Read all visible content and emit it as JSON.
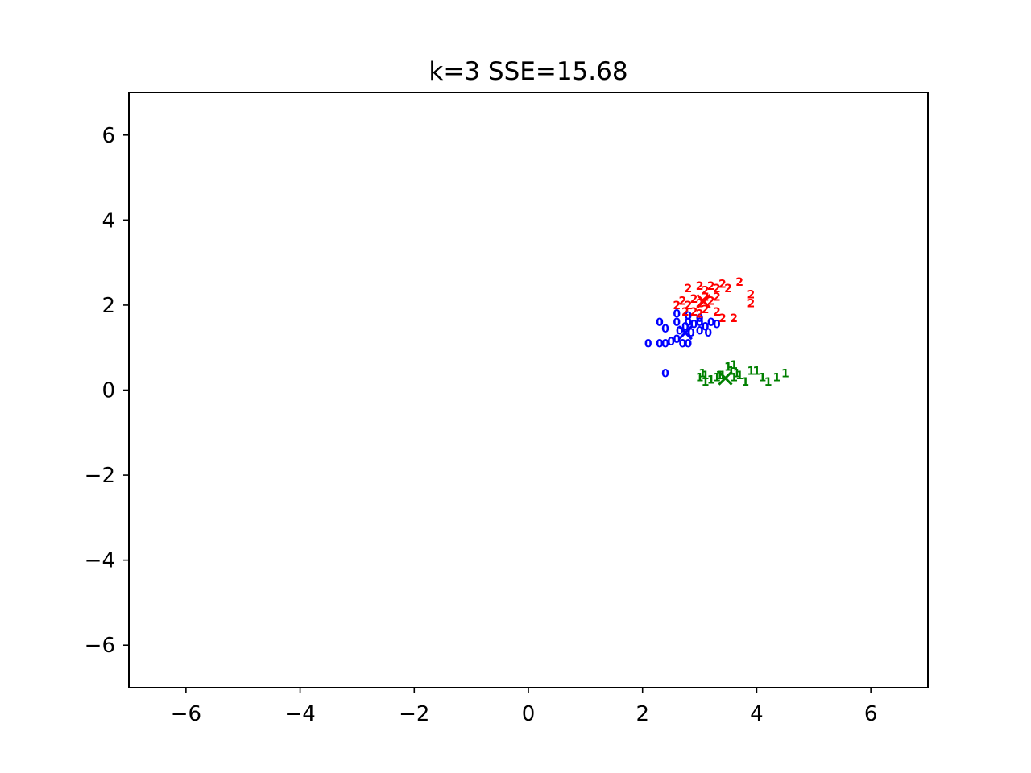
{
  "chart_data": {
    "type": "scatter",
    "title": "k=3  SSE=15.68",
    "xlabel": "",
    "ylabel": "",
    "xlim": [
      -7,
      7
    ],
    "ylim": [
      -7,
      7
    ],
    "xticks": [
      -6,
      -4,
      -2,
      0,
      2,
      4,
      6
    ],
    "yticks": [
      -6,
      -4,
      -2,
      0,
      2,
      4,
      6
    ],
    "xtick_labels": [
      "−6",
      "−4",
      "−2",
      "0",
      "2",
      "4",
      "6"
    ],
    "ytick_labels": [
      "−6",
      "−4",
      "−2",
      "0",
      "2",
      "4",
      "6"
    ],
    "grid": false,
    "legend": "none",
    "marker": "cluster-label-text",
    "series": [
      {
        "label": "0",
        "color": "#0000ff",
        "points": [
          [
            2.1,
            1.1
          ],
          [
            2.3,
            1.1
          ],
          [
            2.4,
            1.1
          ],
          [
            2.5,
            1.15
          ],
          [
            2.6,
            1.2
          ],
          [
            2.7,
            1.1
          ],
          [
            2.8,
            1.1
          ],
          [
            2.3,
            1.6
          ],
          [
            2.4,
            1.45
          ],
          [
            2.6,
            1.8
          ],
          [
            2.6,
            1.6
          ],
          [
            2.65,
            1.4
          ],
          [
            2.75,
            1.5
          ],
          [
            2.8,
            1.6
          ],
          [
            2.85,
            1.35
          ],
          [
            2.9,
            1.55
          ],
          [
            3.0,
            1.4
          ],
          [
            3.0,
            1.6
          ],
          [
            3.1,
            1.5
          ],
          [
            3.15,
            1.35
          ],
          [
            3.2,
            1.6
          ],
          [
            3.3,
            1.55
          ],
          [
            3.0,
            1.7
          ],
          [
            2.8,
            1.75
          ],
          [
            2.4,
            0.4
          ]
        ]
      },
      {
        "label": "1",
        "color": "#008000",
        "points": [
          [
            3.0,
            0.3
          ],
          [
            3.1,
            0.35
          ],
          [
            3.2,
            0.25
          ],
          [
            3.3,
            0.3
          ],
          [
            3.4,
            0.35
          ],
          [
            3.5,
            0.55
          ],
          [
            3.6,
            0.6
          ],
          [
            3.55,
            0.45
          ],
          [
            3.6,
            0.3
          ],
          [
            3.7,
            0.35
          ],
          [
            3.8,
            0.2
          ],
          [
            3.9,
            0.45
          ],
          [
            4.0,
            0.45
          ],
          [
            4.1,
            0.3
          ],
          [
            4.2,
            0.2
          ],
          [
            4.35,
            0.3
          ],
          [
            4.5,
            0.4
          ],
          [
            3.1,
            0.2
          ],
          [
            3.35,
            0.35
          ],
          [
            3.65,
            0.4
          ],
          [
            3.05,
            0.4
          ]
        ]
      },
      {
        "label": "2",
        "color": "#ff0000",
        "points": [
          [
            2.8,
            2.4
          ],
          [
            3.0,
            2.45
          ],
          [
            3.1,
            2.35
          ],
          [
            3.2,
            2.45
          ],
          [
            3.3,
            2.4
          ],
          [
            3.4,
            2.5
          ],
          [
            3.5,
            2.4
          ],
          [
            3.7,
            2.55
          ],
          [
            3.9,
            2.25
          ],
          [
            3.9,
            2.05
          ],
          [
            2.6,
            2.0
          ],
          [
            2.7,
            2.1
          ],
          [
            2.8,
            2.0
          ],
          [
            2.9,
            2.15
          ],
          [
            3.0,
            2.05
          ],
          [
            3.1,
            2.2
          ],
          [
            3.2,
            2.1
          ],
          [
            3.3,
            2.2
          ],
          [
            2.75,
            1.85
          ],
          [
            2.9,
            1.85
          ],
          [
            3.0,
            1.8
          ],
          [
            3.1,
            1.9
          ],
          [
            3.3,
            1.85
          ],
          [
            3.6,
            1.7
          ],
          [
            3.4,
            1.7
          ]
        ]
      }
    ],
    "centroids": [
      {
        "cluster": "0",
        "x": 2.75,
        "y": 1.35,
        "color": "#0000ff"
      },
      {
        "cluster": "1",
        "x": 3.45,
        "y": 0.28,
        "color": "#008000"
      },
      {
        "cluster": "2",
        "x": 3.07,
        "y": 2.09,
        "color": "#ff0000"
      }
    ]
  }
}
